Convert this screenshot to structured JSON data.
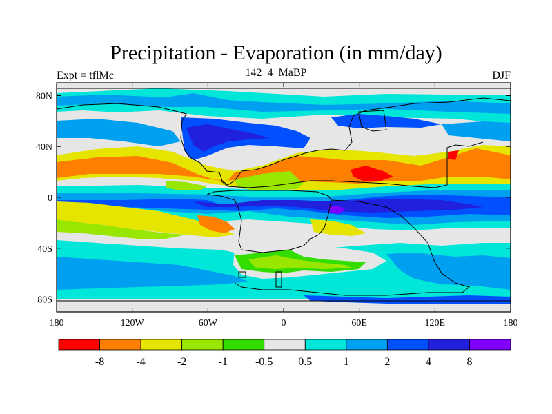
{
  "title": "Precipitation - Evaporation (in mm/day)",
  "subtitle_left": "Expt = tflMc",
  "subtitle_center": "142_4_MaBP",
  "subtitle_right": "DJF",
  "map": {
    "projection": "cylindrical-equidistant",
    "lon_range": [
      -180,
      180
    ],
    "lat_range": [
      -90,
      90
    ],
    "x_ticks": [
      {
        "value": -180,
        "label": "180"
      },
      {
        "value": -120,
        "label": "120W"
      },
      {
        "value": -60,
        "label": "60W"
      },
      {
        "value": 0,
        "label": "0"
      },
      {
        "value": 60,
        "label": "60E"
      },
      {
        "value": 120,
        "label": "120E"
      },
      {
        "value": 180,
        "label": "180"
      }
    ],
    "y_ticks": [
      {
        "value": 80,
        "label": "80N"
      },
      {
        "value": 40,
        "label": "40N"
      },
      {
        "value": 0,
        "label": "0"
      },
      {
        "value": -40,
        "label": "40S"
      },
      {
        "value": -80,
        "label": "80S"
      }
    ],
    "continent_outline_color": "#000000",
    "background_fill": "#e6e6e6"
  },
  "colorbar": {
    "colors": [
      "#ff0000",
      "#ff8000",
      "#e5e500",
      "#99e600",
      "#33dd00",
      "#e6e6e6",
      "#00e6d9",
      "#00a0f0",
      "#0050ff",
      "#2020dd",
      "#8000ff"
    ],
    "labels": [
      "-8",
      "-4",
      "-2",
      "-1",
      "-0.5",
      "0.5",
      "1",
      "2",
      "4",
      "8"
    ]
  }
}
